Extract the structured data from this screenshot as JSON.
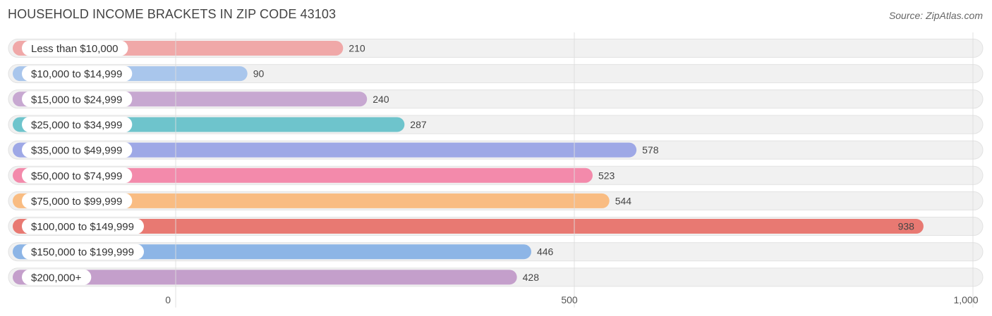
{
  "header": {
    "title": "HOUSEHOLD INCOME BRACKETS IN ZIP CODE 43103",
    "source": "Source: ZipAtlas.com"
  },
  "colors": {
    "track_bg": "#f1f1f1",
    "track_border": "#e2e2e2",
    "grid": "#dddddd",
    "label_pill": "#ffffff"
  },
  "chart_data": {
    "type": "bar",
    "orientation": "horizontal",
    "title": "HOUSEHOLD INCOME BRACKETS IN ZIP CODE 43103",
    "categories": [
      "Less than $10,000",
      "$10,000 to $14,999",
      "$15,000 to $24,999",
      "$25,000 to $34,999",
      "$35,000 to $49,999",
      "$50,000 to $74,999",
      "$75,000 to $99,999",
      "$100,000 to $149,999",
      "$150,000 to $199,999",
      "$200,000+"
    ],
    "values": [
      210,
      90,
      240,
      287,
      578,
      523,
      544,
      938,
      446,
      428
    ],
    "value_labels": [
      "210",
      "90",
      "240",
      "287",
      "578",
      "523",
      "544",
      "938",
      "446",
      "428"
    ],
    "bar_colors": [
      "#f0a8a8",
      "#a9c6ec",
      "#c7a8d1",
      "#6ec4cc",
      "#9ea8e6",
      "#f38aab",
      "#f9bc82",
      "#e87972",
      "#8db5e6",
      "#c49fcb"
    ],
    "xlim": [
      0,
      1000
    ],
    "xticks": [
      0,
      500,
      1000
    ],
    "xtick_labels": [
      "0",
      "500",
      "1,000"
    ],
    "grid": true,
    "xlabel": "",
    "ylabel": ""
  }
}
